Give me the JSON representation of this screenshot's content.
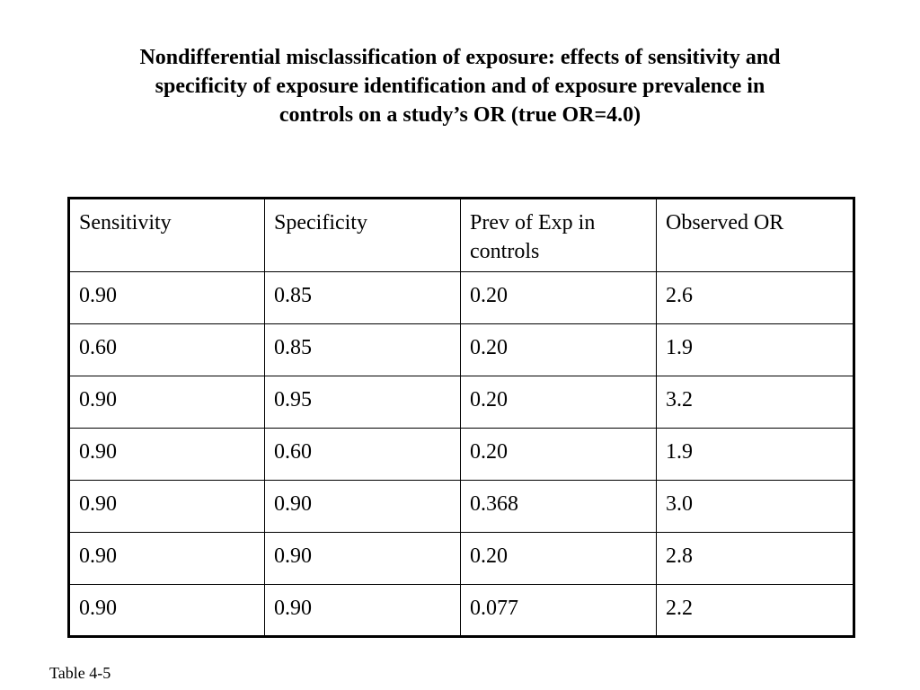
{
  "title": {
    "lines": [
      "Nondifferential misclassification of exposure: effects of sensitivity and",
      "specificity of exposure identification and of exposure prevalence in",
      "controls on a study’s OR (true OR=4.0)"
    ]
  },
  "table": {
    "headers": [
      "Sensitivity",
      "Specificity",
      "Prev of Exp in controls",
      "Observed OR"
    ],
    "rows": [
      [
        "0.90",
        "0.85",
        "0.20",
        "2.6"
      ],
      [
        "0.60",
        "0.85",
        "0.20",
        "1.9"
      ],
      [
        "0.90",
        "0.95",
        "0.20",
        "3.2"
      ],
      [
        "0.90",
        "0.60",
        "0.20",
        "1.9"
      ],
      [
        "0.90",
        "0.90",
        "0.368",
        "3.0"
      ],
      [
        "0.90",
        "0.90",
        "0.20",
        "2.8"
      ],
      [
        "0.90",
        "0.90",
        "0.077",
        "2.2"
      ]
    ]
  },
  "footnote": "Table 4-5"
}
